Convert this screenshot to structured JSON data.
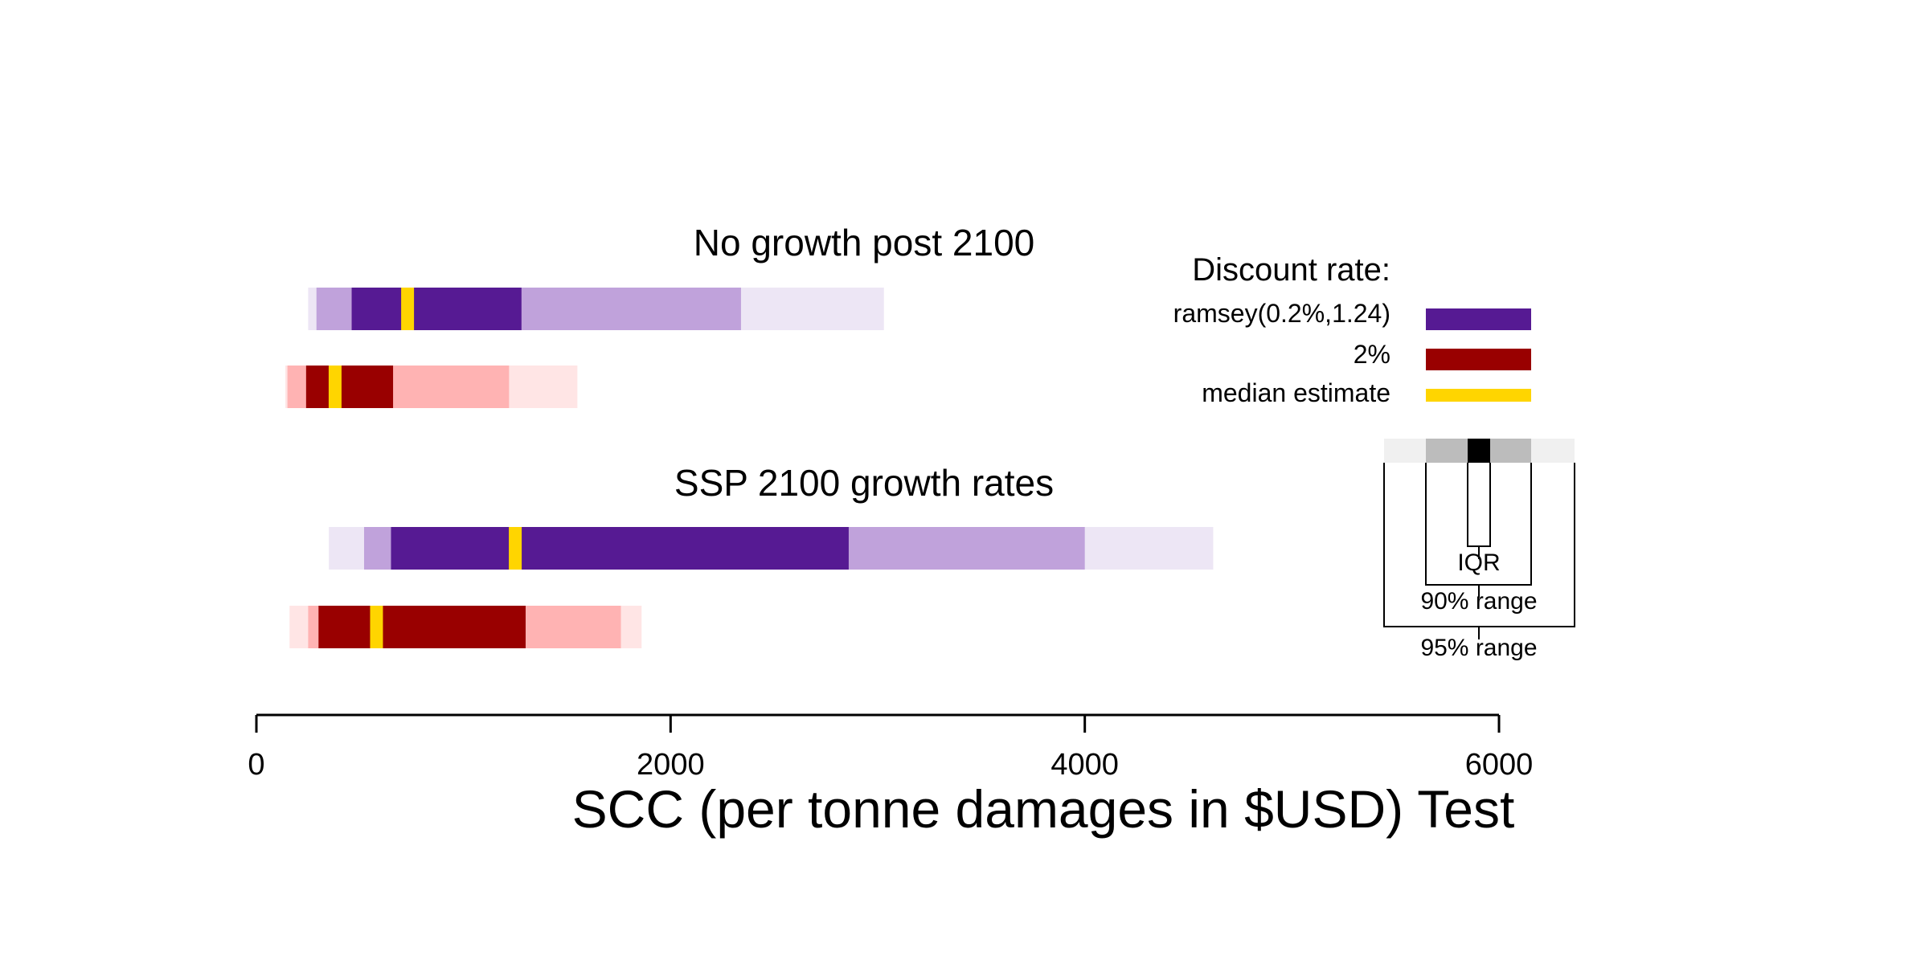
{
  "chart_data": {
    "type": "bar",
    "xlabel": "SCC (per tonne damages in $USD) Test",
    "xlim": [
      0,
      6000
    ],
    "xticks": [
      0,
      2000,
      4000,
      6000
    ],
    "xtick_labels": [
      "0",
      "2000",
      "4000",
      "6000"
    ],
    "panels": [
      {
        "title": "No growth post 2100",
        "series": [
          {
            "name": "ramsey(0.2%,1.24)",
            "range95": [
              250,
              3030
            ],
            "range90": [
              290,
              2340
            ],
            "iqr": [
              460,
              1280
            ],
            "median": 730
          },
          {
            "name": "2%",
            "range95": [
              140,
              1550
            ],
            "range90": [
              150,
              1220
            ],
            "iqr": [
              240,
              660
            ],
            "median": 380
          }
        ]
      },
      {
        "title": "SSP 2100 growth rates",
        "series": [
          {
            "name": "ramsey(0.2%,1.24)",
            "range95": [
              350,
              4620
            ],
            "range90": [
              520,
              4000
            ],
            "iqr": [
              650,
              2860
            ],
            "median": 1250
          },
          {
            "name": "2%",
            "range95": [
              160,
              1860
            ],
            "range90": [
              250,
              1760
            ],
            "iqr": [
              300,
              1300
            ],
            "median": 580
          }
        ]
      }
    ],
    "legend": {
      "title": "Discount rate:",
      "entries": [
        {
          "label": "ramsey(0.2%,1.24)",
          "color": "#561a93"
        },
        {
          "label": "2%",
          "color": "#990000"
        },
        {
          "label": "median estimate",
          "color": "#ffd500"
        }
      ],
      "key_labels": {
        "iqr": "IQR",
        "range90": "90% range",
        "range95": "95% range"
      },
      "placement": "right"
    },
    "colors": {
      "ramsey": {
        "iqr": "#561a93",
        "range90": "#c0a2db",
        "range95": "#ede6f5"
      },
      "two_percent": {
        "iqr": "#990000",
        "range90": "#ffb3b3",
        "range95": "#ffe5e5"
      },
      "median": "#ffd500",
      "key": {
        "iqr": "#000000",
        "range90": "#bcbcbc",
        "range95": "#f0f0f0"
      }
    },
    "grid": false
  }
}
